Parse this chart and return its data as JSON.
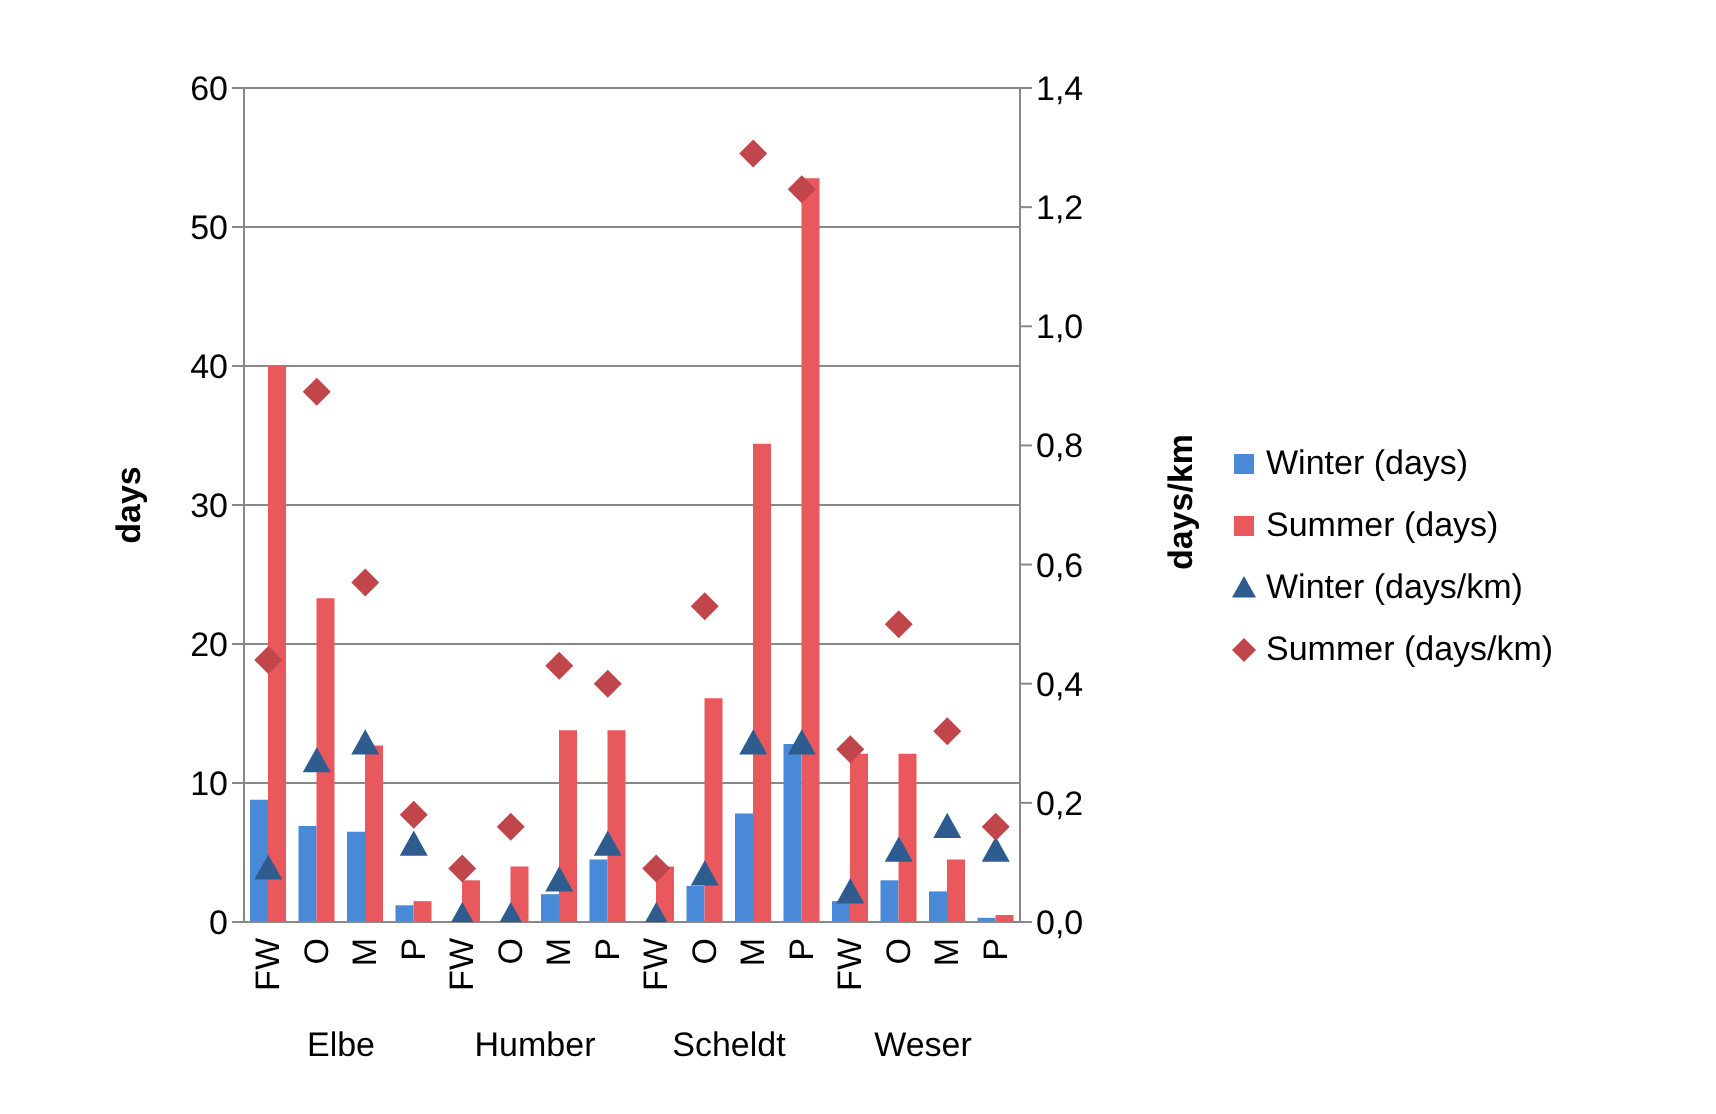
{
  "chart_data": {
    "type": "bar",
    "ylabel": "days",
    "y2label": "days/km",
    "categories": [
      "FW",
      "O",
      "M",
      "P",
      "FW",
      "O",
      "M",
      "P",
      "FW",
      "O",
      "M",
      "P",
      "FW",
      "O",
      "M",
      "P"
    ],
    "annotations": [
      "Elbe",
      "Humber",
      "Scheldt",
      "Weser"
    ],
    "series": [
      {
        "name": "Winter (days)",
        "color": "#4a88d8",
        "values": [
          8.8,
          6.9,
          6.5,
          1.2,
          null,
          null,
          2.0,
          4.5,
          null,
          2.6,
          7.8,
          12.8,
          1.5,
          3.0,
          2.2,
          0.3
        ]
      },
      {
        "name": "Summer (days)",
        "color": "#e8585c",
        "values": [
          40,
          23.3,
          12.7,
          1.5,
          3.0,
          4.0,
          13.8,
          13.8,
          4.0,
          16.1,
          34.4,
          53.5,
          12.1,
          12.1,
          4.5,
          0.5
        ]
      },
      {
        "name": "Winter (days/km)",
        "type": "scatter",
        "axis": "y2",
        "marker": "triangle",
        "color": "#2e5c8f",
        "values": [
          0.09,
          0.27,
          0.3,
          0.13,
          0.01,
          0.01,
          0.07,
          0.13,
          0.01,
          0.08,
          0.3,
          0.3,
          0.05,
          0.12,
          0.16,
          0.12
        ]
      },
      {
        "name": "Summer (days/km)",
        "type": "scatter",
        "axis": "y2",
        "marker": "diamond",
        "color": "#c0464b",
        "values": [
          0.44,
          0.89,
          0.57,
          0.18,
          0.09,
          0.16,
          0.43,
          0.4,
          0.09,
          0.53,
          1.29,
          1.23,
          0.29,
          0.5,
          0.32,
          0.16
        ]
      }
    ],
    "ylim": [
      0,
      60
    ],
    "yticks": [
      0,
      10,
      20,
      30,
      40,
      50,
      60
    ],
    "y2lim": [
      0,
      1.4
    ],
    "y2ticks": [
      {
        "value": 0,
        "label": "0,0"
      },
      {
        "value": 0.2,
        "label": "0,2"
      },
      {
        "value": 0.4,
        "label": "0,4"
      },
      {
        "value": 0.6,
        "label": "0,6"
      },
      {
        "value": 0.8,
        "label": "0,8"
      },
      {
        "value": 1.0,
        "label": "1,0"
      },
      {
        "value": 1.2,
        "label": "1,2"
      },
      {
        "value": 1.4,
        "label": "1,4"
      }
    ],
    "grid": "y",
    "legend": "right"
  }
}
